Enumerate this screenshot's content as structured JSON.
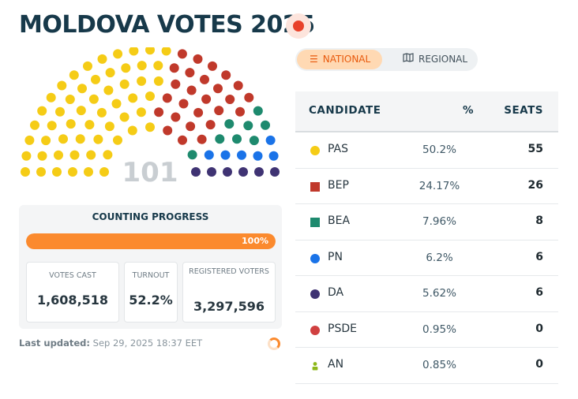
{
  "header": {
    "title": "MOLDOVA VOTES 2025",
    "live_indicator_color": "#e8412a"
  },
  "view_toggle": {
    "tabs": [
      {
        "label": "NATIONAL",
        "icon": "list-icon",
        "active": true
      },
      {
        "label": "REGIONAL",
        "icon": "map-icon",
        "active": false
      }
    ]
  },
  "parliament": {
    "total_seats": "101",
    "seat_groups": [
      {
        "party": "PAS",
        "seats": 55,
        "color": "#f5cc16"
      },
      {
        "party": "BEP",
        "seats": 26,
        "color": "#c0392b"
      },
      {
        "party": "BEA",
        "seats": 8,
        "color": "#1e8a6e"
      },
      {
        "party": "PN",
        "seats": 6,
        "color": "#1a73e8"
      },
      {
        "party": "DA",
        "seats": 6,
        "color": "#3f3373"
      }
    ]
  },
  "counting": {
    "title": "COUNTING PROGRESS",
    "progress_label": "100%",
    "progress_fraction": 1.0,
    "votes_cast_label": "VOTES CAST",
    "votes_cast": "1,608,518",
    "turnout_label": "TURNOUT",
    "turnout": "52.2%",
    "registered_label": "REGISTERED VOTERS",
    "registered": "3,297,596"
  },
  "updated": {
    "label": "Last updated:",
    "value": "Sep 29, 2025 18:37 EET"
  },
  "results_table": {
    "headers": {
      "candidate": "CANDIDATE",
      "percent": "%",
      "seats": "SEATS"
    },
    "rows": [
      {
        "name": "PAS",
        "percent": "50.2%",
        "seats": "55",
        "color": "#f5cc16",
        "marker": "circle"
      },
      {
        "name": "BEP",
        "percent": "24.17%",
        "seats": "26",
        "color": "#c0392b",
        "marker": "square"
      },
      {
        "name": "BEA",
        "percent": "7.96%",
        "seats": "8",
        "color": "#1e8a6e",
        "marker": "square"
      },
      {
        "name": "PN",
        "percent": "6.2%",
        "seats": "6",
        "color": "#1a73e8",
        "marker": "circle"
      },
      {
        "name": "DA",
        "percent": "5.62%",
        "seats": "6",
        "color": "#3f3373",
        "marker": "circle"
      },
      {
        "name": "PSDE",
        "percent": "0.95%",
        "seats": "0",
        "color": "#d04040",
        "marker": "circle"
      },
      {
        "name": "AN",
        "percent": "0.85%",
        "seats": "0",
        "color": "#8db71a",
        "marker": "person"
      }
    ]
  }
}
